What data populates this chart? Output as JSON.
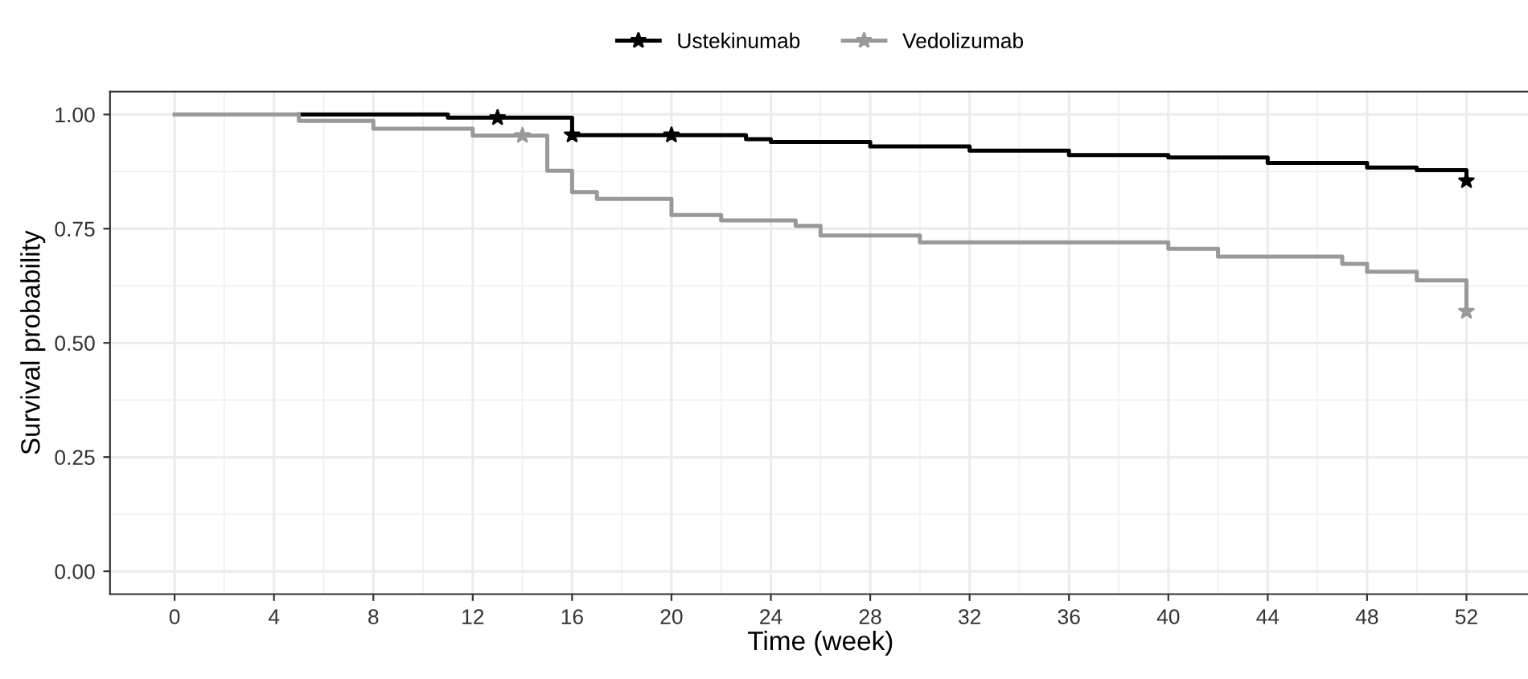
{
  "chart_data": {
    "type": "step",
    "xlabel": "Time (week)",
    "ylabel": "Survival probability",
    "xlim": [
      -2.6,
      54.6
    ],
    "ylim": [
      -0.05,
      1.05
    ],
    "xticks": [
      0,
      4,
      8,
      12,
      16,
      20,
      24,
      28,
      32,
      36,
      40,
      44,
      48,
      52
    ],
    "yticks": [
      {
        "value": 0,
        "label": "0.00"
      },
      {
        "value": 0.25,
        "label": "0.25"
      },
      {
        "value": 0.5,
        "label": "0.50"
      },
      {
        "value": 0.75,
        "label": "0.75"
      },
      {
        "value": 1,
        "label": "1.00"
      }
    ],
    "grid": true,
    "legend": "top",
    "series": [
      {
        "name": "Ustekinumab",
        "color": "#000000",
        "marker": "none",
        "x": [
          5,
          11,
          16,
          23,
          24,
          28,
          32,
          36,
          40,
          44,
          48,
          50,
          52
        ],
        "values": [
          1,
          0.993,
          0.955,
          0.946,
          0.94,
          0.93,
          0.921,
          0.911,
          0.906,
          0.894,
          0.884,
          0.878,
          0.855
        ]
      },
      {
        "name": "Vedolizumab",
        "color": "#999999",
        "marker": "none",
        "x": [
          0,
          5,
          8,
          12,
          15,
          16,
          17,
          20,
          22,
          25,
          26,
          30,
          40,
          42,
          47,
          48,
          50,
          52
        ],
        "values": [
          1,
          0.986,
          0.969,
          0.954,
          0.877,
          0.83,
          0.815,
          0.78,
          0.768,
          0.756,
          0.735,
          0.72,
          0.706,
          0.689,
          0.673,
          0.656,
          0.637,
          0.569
        ]
      },
      {
        "type": "scatter",
        "marker": "star",
        "color": "#000000",
        "x": [
          13,
          16,
          20,
          52
        ],
        "values": [
          0.993,
          0.955,
          0.955,
          0.855
        ]
      },
      {
        "type": "scatter",
        "marker": "star",
        "color": "#999999",
        "x": [
          14,
          52
        ],
        "values": [
          0.954,
          0.569
        ]
      }
    ]
  }
}
